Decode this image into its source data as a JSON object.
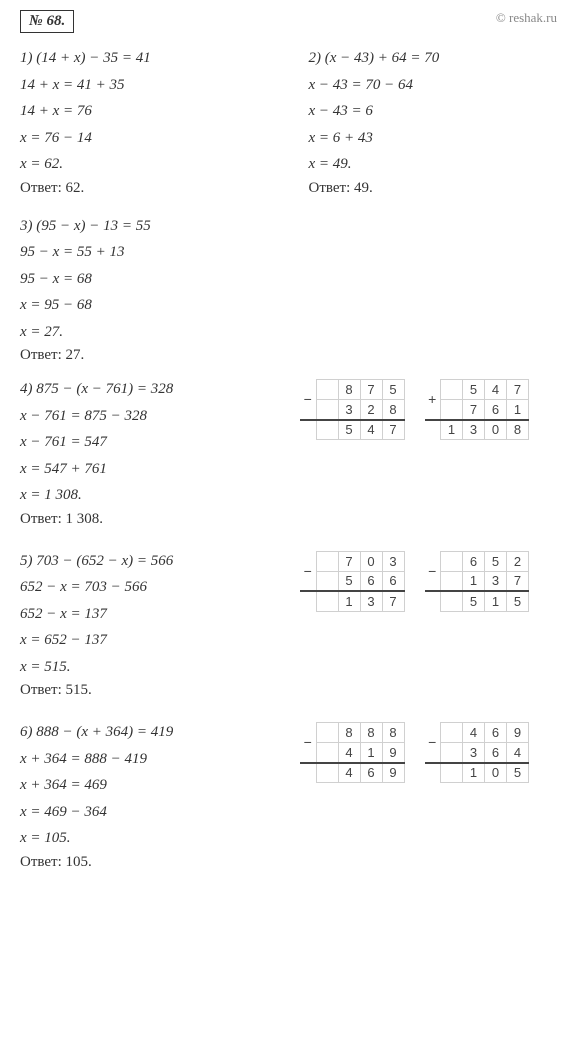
{
  "watermark": "© reshak.ru",
  "problem_number": "№ 68.",
  "p1": {
    "lines": [
      "1) (14 + x) − 35 = 41",
      "14 + x = 41 + 35",
      "14 + x = 76",
      "x = 76 − 14",
      "x = 62."
    ],
    "answer": "Ответ: 62."
  },
  "p2": {
    "lines": [
      "2) (x − 43) + 64 = 70",
      "x − 43 = 70 − 64",
      "x − 43 = 6",
      "x = 6 + 43",
      "x = 49."
    ],
    "answer": "Ответ: 49."
  },
  "p3": {
    "lines": [
      "3) (95 − x) − 13 = 55",
      "95 − x = 55 + 13",
      "95 − x = 68",
      "x = 95 − 68",
      "x = 27."
    ],
    "answer": "Ответ: 27."
  },
  "p4": {
    "lines": [
      "4) 875 − (x − 761) = 328",
      "x − 761 = 875 − 328",
      "x − 761 = 547",
      "x = 547 + 761",
      "x = 1 308."
    ],
    "answer": "Ответ: 1 308.",
    "calc1": {
      "sign": "−",
      "r1": [
        "",
        "8",
        "7",
        "5"
      ],
      "r2": [
        "",
        "3",
        "2",
        "8"
      ],
      "r3": [
        "",
        "5",
        "4",
        "7"
      ]
    },
    "calc2": {
      "sign": "+",
      "r1": [
        "",
        "5",
        "4",
        "7"
      ],
      "r2": [
        "",
        "7",
        "6",
        "1"
      ],
      "r3": [
        "1",
        "3",
        "0",
        "8"
      ]
    }
  },
  "p5": {
    "lines": [
      "5) 703 − (652 − x) = 566",
      "652 − x = 703 − 566",
      "652 − x = 137",
      "x = 652 − 137",
      "x = 515."
    ],
    "answer": "Ответ: 515.",
    "calc1": {
      "sign": "−",
      "r1": [
        "",
        "7",
        "0",
        "3"
      ],
      "r2": [
        "",
        "5",
        "6",
        "6"
      ],
      "r3": [
        "",
        "1",
        "3",
        "7"
      ]
    },
    "calc2": {
      "sign": "−",
      "r1": [
        "",
        "6",
        "5",
        "2"
      ],
      "r2": [
        "",
        "1",
        "3",
        "7"
      ],
      "r3": [
        "",
        "5",
        "1",
        "5"
      ]
    }
  },
  "p6": {
    "lines": [
      "6) 888 − (x + 364) = 419",
      "x + 364 = 888 − 419",
      "x + 364 = 469",
      "x = 469 − 364",
      "x = 105."
    ],
    "answer": "Ответ: 105.",
    "calc1": {
      "sign": "−",
      "r1": [
        "",
        "8",
        "8",
        "8"
      ],
      "r2": [
        "",
        "4",
        "1",
        "9"
      ],
      "r3": [
        "",
        "4",
        "6",
        "9"
      ]
    },
    "calc2": {
      "sign": "−",
      "r1": [
        "",
        "4",
        "6",
        "9"
      ],
      "r2": [
        "",
        "3",
        "6",
        "4"
      ],
      "r3": [
        "",
        "1",
        "0",
        "5"
      ]
    }
  }
}
